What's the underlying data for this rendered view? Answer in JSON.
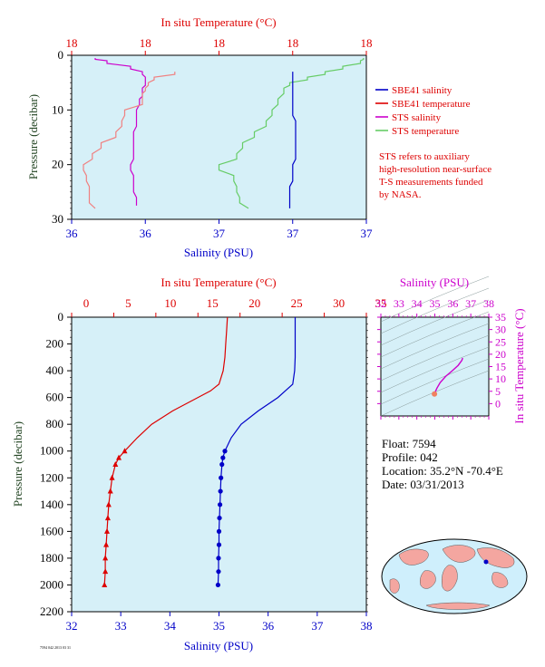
{
  "colors": {
    "panel_bg": "#d6f0f8",
    "salinity": "#0000c8",
    "temperature": "#dd0000",
    "sts_salinity": "#cc00cc",
    "sts_temperature": "#66cc66",
    "sts_temperature_light": "#f08080",
    "axis_text": "#000000",
    "ylabel": "#224422"
  },
  "top_panel": {
    "top_axis_label": "In situ Temperature (°C)",
    "bottom_axis_label": "Salinity (PSU)",
    "y_axis_label": "Pressure (decibar)",
    "top_ticks": [
      "18",
      "18",
      "18",
      "18",
      "18"
    ],
    "bottom_ticks": [
      "36",
      "36",
      "37",
      "37",
      "37"
    ],
    "y_ticks": [
      "0",
      "10",
      "20",
      "30"
    ]
  },
  "legend": {
    "items": [
      {
        "label": "SBE41 salinity",
        "color": "#0000c8"
      },
      {
        "label": "SBE41 temperature",
        "color": "#dd0000"
      },
      {
        "label": "STS salinity",
        "color": "#cc00cc"
      },
      {
        "label": "STS temperature",
        "color": "#66cc66"
      }
    ],
    "note_lines": [
      "STS refers to auxiliary",
      "high-resolution near-surface",
      "T-S measurements funded",
      "by NASA."
    ]
  },
  "main_panel": {
    "top_axis_label": "In situ Temperature (°C)",
    "bottom_axis_label": "Salinity (PSU)",
    "y_axis_label": "Pressure (decibar)",
    "top_ticks": [
      "0",
      "5",
      "10",
      "15",
      "20",
      "25",
      "30",
      "35"
    ],
    "bottom_ticks": [
      "32",
      "33",
      "34",
      "35",
      "36",
      "37",
      "38"
    ],
    "y_ticks": [
      "0",
      "200",
      "400",
      "600",
      "800",
      "1000",
      "1200",
      "1400",
      "1600",
      "1800",
      "2000",
      "2200"
    ]
  },
  "ts_panel": {
    "top_axis_label": "Salinity (PSU)",
    "right_axis_label": "In situ Temperature (°C)",
    "top_ticks": [
      "32",
      "33",
      "34",
      "35",
      "36",
      "37",
      "38"
    ],
    "right_ticks": [
      "0",
      "5",
      "10",
      "15",
      "20",
      "25",
      "30",
      "35"
    ]
  },
  "info": {
    "float": "Float: 7594",
    "profile": "Profile: 042",
    "location": "Location: 35.2°N -70.4°E",
    "date": "Date: 03/31/2013"
  },
  "footer_small": "7594 042 2013 03 31",
  "chart_data": [
    {
      "type": "line",
      "name": "near-surface profile",
      "xlabel": "Salinity (PSU)",
      "ylabel": "Pressure (decibar)",
      "x2label": "In situ Temperature (°C)",
      "ylim": [
        30,
        0
      ],
      "series": [
        {
          "name": "STS salinity",
          "pressure": [
            0.5,
            1,
            2,
            3,
            4,
            5,
            6,
            7,
            8,
            10,
            12,
            14,
            16,
            18,
            20,
            22,
            24,
            26,
            27.5
          ],
          "position": [
            0.08,
            0.12,
            0.2,
            0.24,
            0.25,
            0.25,
            0.24,
            0.24,
            0.23,
            0.22,
            0.22,
            0.21,
            0.21,
            0.21,
            0.2,
            0.21,
            0.21,
            0.22,
            0.22
          ]
        },
        {
          "name": "STS temperature (light)",
          "pressure": [
            3,
            4,
            5,
            6,
            7,
            8,
            10,
            12,
            14,
            16,
            18,
            20,
            22,
            24,
            26,
            28
          ],
          "position": [
            0.35,
            0.28,
            0.26,
            0.25,
            0.24,
            0.24,
            0.18,
            0.17,
            0.15,
            0.1,
            0.07,
            0.04,
            0.05,
            0.06,
            0.06,
            0.08
          ]
        },
        {
          "name": "STS temperature",
          "pressure": [
            0.5,
            1,
            2,
            3,
            4,
            5,
            6,
            8,
            10,
            12,
            14,
            16,
            18,
            20,
            22,
            24,
            26,
            28
          ],
          "position": [
            0.99,
            0.98,
            0.92,
            0.86,
            0.8,
            0.74,
            0.72,
            0.7,
            0.68,
            0.66,
            0.62,
            0.58,
            0.56,
            0.5,
            0.55,
            0.56,
            0.57,
            0.6
          ]
        },
        {
          "name": "SBE41 salinity",
          "pressure": [
            3,
            5,
            8,
            10,
            12,
            15,
            18,
            20,
            22,
            24,
            26,
            28
          ],
          "position": [
            0.75,
            0.75,
            0.75,
            0.75,
            0.76,
            0.76,
            0.76,
            0.75,
            0.75,
            0.74,
            0.74,
            0.74
          ]
        }
      ]
    },
    {
      "type": "line",
      "name": "full-depth profile",
      "xlabel": "Salinity (PSU)",
      "ylabel": "Pressure (decibar)",
      "x2label": "In situ Temperature (°C)",
      "xlim": [
        32,
        38
      ],
      "x2lim": [
        0,
        35
      ],
      "ylim": [
        2200,
        0
      ],
      "series": [
        {
          "name": "SBE41 temperature",
          "pressure": [
            0,
            100,
            200,
            300,
            400,
            500,
            550,
            600,
            700,
            800,
            900,
            1000,
            1050,
            1100,
            1200,
            1300,
            1400,
            1500,
            1600,
            1700,
            1800,
            1900,
            2000
          ],
          "temperature": [
            18.5,
            18.4,
            18.3,
            18.2,
            18.0,
            17.5,
            16.5,
            15.0,
            12.0,
            9.5,
            7.8,
            6.3,
            5.6,
            5.2,
            4.8,
            4.6,
            4.4,
            4.3,
            4.2,
            4.1,
            4.0,
            4.0,
            3.9
          ]
        },
        {
          "name": "SBE41 salinity",
          "pressure": [
            0,
            100,
            200,
            300,
            400,
            500,
            550,
            600,
            700,
            800,
            900,
            1000,
            1050,
            1100,
            1200,
            1300,
            1400,
            1500,
            1600,
            1700,
            1800,
            1900,
            2000
          ],
          "salinity": [
            36.55,
            36.55,
            36.55,
            36.55,
            36.54,
            36.5,
            36.35,
            36.2,
            35.8,
            35.45,
            35.25,
            35.12,
            35.08,
            35.06,
            35.04,
            35.03,
            35.02,
            35.01,
            35.0,
            35.0,
            34.99,
            34.99,
            34.98
          ]
        }
      ],
      "markers_from_pressure": 1000
    },
    {
      "type": "line",
      "name": "T-S diagram",
      "xlabel": "Salinity (PSU)",
      "ylabel": "In situ Temperature (°C)",
      "xlim": [
        32,
        38
      ],
      "ylim": [
        -5,
        35
      ],
      "series": [
        {
          "name": "T-S curve",
          "salinity": [
            34.98,
            35.0,
            35.05,
            35.12,
            35.3,
            35.6,
            36.0,
            36.3,
            36.5,
            36.55
          ],
          "temperature": [
            3.9,
            4.3,
            5.2,
            6.3,
            8.5,
            11.0,
            13.5,
            15.5,
            17.5,
            18.5
          ]
        }
      ]
    }
  ]
}
